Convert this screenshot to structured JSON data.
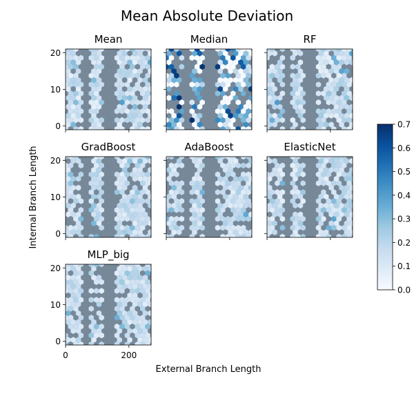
{
  "chart_data": {
    "type": "heatmap",
    "title": "Mean Absolute Deviation",
    "xlabel": "External Branch Length",
    "ylabel": "Internal Branch Length",
    "xlim": [
      0,
      270
    ],
    "ylim": [
      -1,
      21
    ],
    "x_ticks": [
      0,
      200
    ],
    "y_ticks": [
      0,
      10,
      20
    ],
    "background_color": "#778899",
    "colormap": "Blues",
    "colorbar": {
      "min": 0.0,
      "max": 0.7,
      "ticks": [
        0.0,
        0.1,
        0.2,
        0.3,
        0.4,
        0.5,
        0.6,
        0.7
      ],
      "tick_labels": [
        "0.0",
        "0.1",
        "0.2",
        "0.3",
        "0.4",
        "0.5",
        "0.6",
        "0.7"
      ]
    },
    "panels": [
      {
        "name": "Mean",
        "seed": 11,
        "scale": 0.75,
        "offset": 0.02,
        "ytick_labels": true,
        "xtick_labels": false
      },
      {
        "name": "Median",
        "seed": 23,
        "scale": 1.45,
        "offset": -0.04,
        "ytick_labels": false,
        "xtick_labels": false
      },
      {
        "name": "RF",
        "seed": 37,
        "scale": 0.78,
        "offset": 0.02,
        "ytick_labels": false,
        "xtick_labels": false
      },
      {
        "name": "GradBoost",
        "seed": 41,
        "scale": 0.72,
        "offset": 0.03,
        "ytick_labels": true,
        "xtick_labels": false
      },
      {
        "name": "AdaBoost",
        "seed": 53,
        "scale": 0.7,
        "offset": 0.04,
        "ytick_labels": false,
        "xtick_labels": false
      },
      {
        "name": "ElasticNet",
        "seed": 67,
        "scale": 0.74,
        "offset": 0.03,
        "ytick_labels": false,
        "xtick_labels": false
      },
      {
        "name": "MLP_big",
        "seed": 79,
        "scale": 0.73,
        "offset": 0.03,
        "ytick_labels": true,
        "xtick_labels": true
      }
    ]
  }
}
